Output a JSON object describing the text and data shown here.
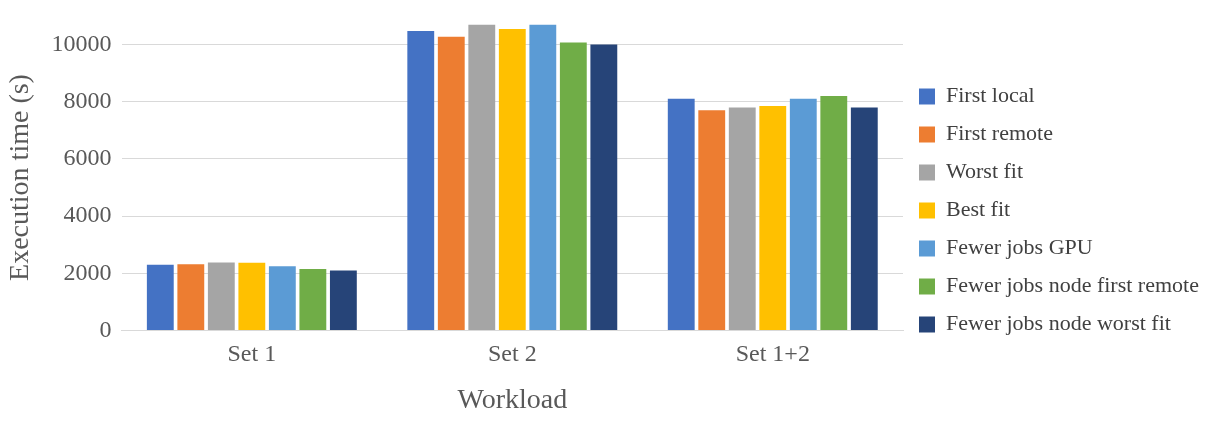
{
  "chart_data": {
    "type": "bar",
    "xlabel": "Workload",
    "ylabel": "Execution time (s)",
    "categories": [
      "Set 1",
      "Set 2",
      "Set 1+2"
    ],
    "series": [
      {
        "name": "First local",
        "color": "#4472c4",
        "values": [
          2300,
          10470,
          8100
        ]
      },
      {
        "name": "First remote",
        "color": "#ed7d31",
        "values": [
          2320,
          10270,
          7700
        ]
      },
      {
        "name": "Worst fit",
        "color": "#a5a5a5",
        "values": [
          2380,
          10700,
          7800
        ]
      },
      {
        "name": "Best fit",
        "color": "#ffc000",
        "values": [
          2370,
          10540,
          7850
        ]
      },
      {
        "name": "Fewer jobs GPU",
        "color": "#5b9bd5",
        "values": [
          2250,
          10700,
          8100
        ]
      },
      {
        "name": "Fewer jobs node first remote",
        "color": "#70ad47",
        "values": [
          2150,
          10070,
          8200
        ]
      },
      {
        "name": "Fewer jobs node worst fit",
        "color": "#264478",
        "values": [
          2100,
          10000,
          7800
        ]
      }
    ],
    "ylim": [
      0,
      10700
    ],
    "yticks": [
      0,
      2000,
      4000,
      6000,
      8000,
      10000
    ],
    "grid": "y",
    "legend": "right"
  }
}
